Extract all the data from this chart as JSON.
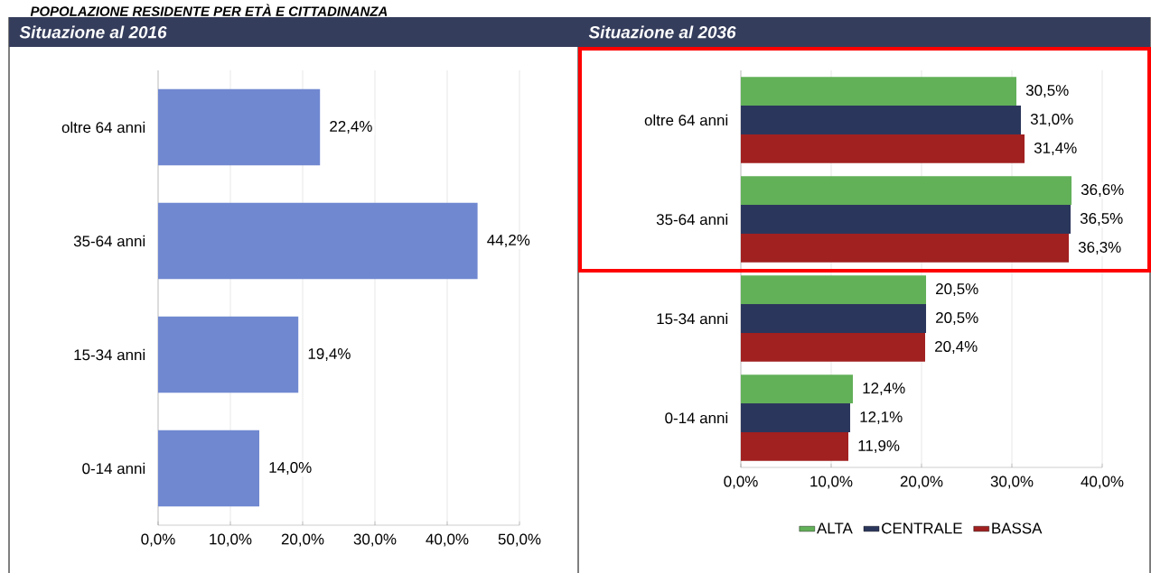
{
  "chart_data": [
    {
      "type": "bar",
      "orientation": "horizontal",
      "title": "Situazione al 2016",
      "annotations": [
        "POPOLAZIONE RESIDENTE PER ETÀ E CITTADINANZA"
      ],
      "categories": [
        "oltre 64 anni",
        "35-64 anni",
        "15-34 anni",
        "0-14 anni"
      ],
      "values": [
        22.4,
        44.2,
        19.4,
        14.0
      ],
      "color": "#7088d0",
      "value_labels": [
        "22,4%",
        "44,2%",
        "19,4%",
        "14,0%"
      ],
      "xlim": [
        0,
        50
      ],
      "xticks": [
        {
          "value": 0,
          "label": "0,0%"
        },
        {
          "value": 10,
          "label": "10,0%"
        },
        {
          "value": 20,
          "label": "20,0%"
        },
        {
          "value": 30,
          "label": "30,0%"
        },
        {
          "value": 40,
          "label": "40,0%"
        },
        {
          "value": 50,
          "label": "50,0%"
        }
      ],
      "grid": "x"
    },
    {
      "type": "bar",
      "orientation": "horizontal",
      "title": "Situazione al 2036",
      "categories": [
        "oltre 64 anni",
        "35-64 anni",
        "15-34 anni",
        "0-14 anni"
      ],
      "series": [
        {
          "name": "ALTA",
          "color": "#62b058",
          "values": [
            30.5,
            36.6,
            20.5,
            12.4
          ],
          "value_labels": [
            "30,5%",
            "36,6%",
            "20,5%",
            "12,4%"
          ]
        },
        {
          "name": "CENTRALE",
          "color": "#2b365c",
          "values": [
            31.0,
            36.5,
            20.5,
            12.1
          ],
          "value_labels": [
            "31,0%",
            "36,5%",
            "20,5%",
            "12,1%"
          ]
        },
        {
          "name": "BASSA",
          "color": "#a12020",
          "values": [
            31.4,
            36.3,
            20.4,
            11.9
          ],
          "value_labels": [
            "31,4%",
            "36,3%",
            "20,4%",
            "11,9%"
          ]
        }
      ],
      "xlim": [
        0,
        40
      ],
      "xticks": [
        {
          "value": 0,
          "label": "0,0%"
        },
        {
          "value": 10,
          "label": "10,0%"
        },
        {
          "value": 20,
          "label": "20,0%"
        },
        {
          "value": 30,
          "label": "30,0%"
        },
        {
          "value": 40,
          "label": "40,0%"
        }
      ],
      "grid": "x",
      "legend": "bottom"
    }
  ]
}
